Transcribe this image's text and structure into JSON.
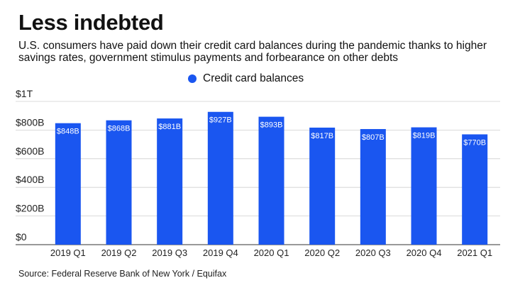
{
  "header": {
    "title": "Less indebted",
    "subtitle": "U.S. consumers have paid down their credit card balances during the pandemic thanks to higher savings rates, government stimulus payments and forbearance on other debts"
  },
  "legend": {
    "label": "Credit card balances"
  },
  "source": "Source: Federal Reserve Bank of New York / Equifax",
  "colors": {
    "bar": "#1a56f0",
    "grid": "#cfcfcf",
    "axis": "#333333"
  },
  "chart_data": {
    "type": "bar",
    "categories": [
      "2019 Q1",
      "2019 Q2",
      "2019 Q3",
      "2019 Q4",
      "2020 Q1",
      "2020 Q2",
      "2020 Q3",
      "2020 Q4",
      "2021 Q1"
    ],
    "series": [
      {
        "name": "Credit card balances",
        "values": [
          848,
          868,
          881,
          927,
          893,
          817,
          807,
          819,
          770
        ],
        "data_labels": [
          "$848B",
          "$868B",
          "$881B",
          "$927B",
          "$893B",
          "$817B",
          "$807B",
          "$819B",
          "$770B"
        ]
      }
    ],
    "yticks": [
      0,
      200,
      400,
      600,
      800,
      1000
    ],
    "ytick_labels": [
      "$0",
      "$200B",
      "$400B",
      "$600B",
      "$800B",
      "$1T"
    ],
    "ylim": [
      0,
      1000
    ],
    "grid": true,
    "legend_position": "top-center"
  }
}
